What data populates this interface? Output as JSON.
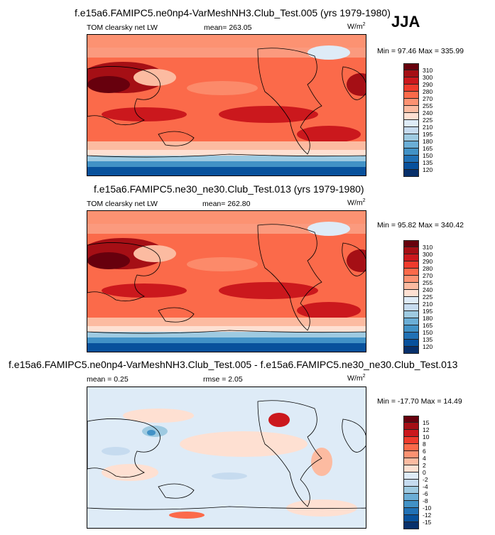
{
  "season": "JJA",
  "colors": {
    "levels_abs": [
      "#67000d",
      "#a50f15",
      "#cb181d",
      "#ef3b2c",
      "#fb6a4a",
      "#fc9272",
      "#fcbba1",
      "#fee0d2",
      "#deebf7",
      "#c6dbef",
      "#9ecae1",
      "#6baed6",
      "#4292c6",
      "#2171b5",
      "#08519c",
      "#08306b"
    ],
    "levels_diff": [
      "#67000d",
      "#a50f15",
      "#cb181d",
      "#ef3b2c",
      "#fb6a4a",
      "#fc9272",
      "#fcbba1",
      "#fee0d2",
      "#deebf7",
      "#c6dbef",
      "#9ecae1",
      "#6baed6",
      "#4292c6",
      "#2171b5",
      "#08519c",
      "#08306b"
    ]
  },
  "panels": [
    {
      "title": "f.e15a6.FAMIPC5.ne0np4-VarMeshNH3.Club_Test.005 (yrs 1979-1980)",
      "variable": "TOM clearsky net LW",
      "mean": "mean= 263.05",
      "units": "W/m",
      "units_exp": "2",
      "minmax": "Min =  97.46 Max = 335.99",
      "ticks": [
        "310",
        "300",
        "290",
        "280",
        "270",
        "255",
        "240",
        "225",
        "210",
        "195",
        "180",
        "165",
        "150",
        "135",
        "120"
      ]
    },
    {
      "title": "f.e15a6.FAMIPC5.ne30_ne30.Club_Test.013 (yrs 1979-1980)",
      "variable": "TOM clearsky net LW",
      "mean": "mean= 262.80",
      "units": "W/m",
      "units_exp": "2",
      "minmax": "Min =  95.82 Max = 340.42",
      "ticks": [
        "310",
        "300",
        "290",
        "280",
        "270",
        "255",
        "240",
        "225",
        "210",
        "195",
        "180",
        "165",
        "150",
        "135",
        "120"
      ]
    },
    {
      "title": "f.e15a6.FAMIPC5.ne0np4-VarMeshNH3.Club_Test.005 - f.e15a6.FAMIPC5.ne30_ne30.Club_Test.013",
      "mean": "mean =   0.25",
      "rmse": "rmse =   2.05",
      "units": "W/m",
      "units_exp": "2",
      "minmax": "Min = -17.70 Max =  14.49",
      "ticks": [
        "15",
        "12",
        "10",
        "8",
        "6",
        "4",
        "2",
        "0",
        "-2",
        "-4",
        "-6",
        "-8",
        "-10",
        "-12",
        "-15"
      ]
    }
  ]
}
